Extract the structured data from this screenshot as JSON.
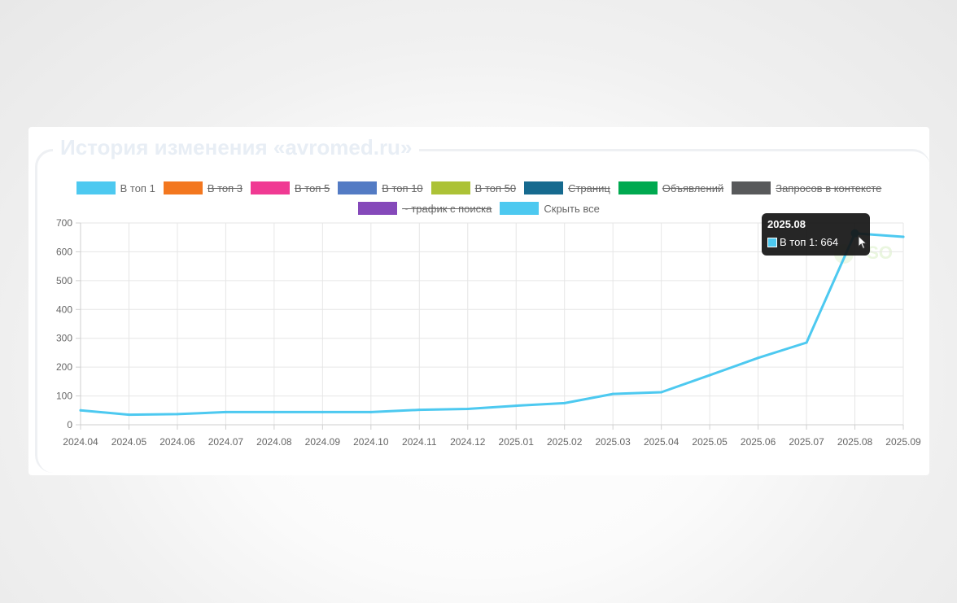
{
  "panel": {
    "title": "История изменения «avromed.ru»",
    "watermark": "SO"
  },
  "legend": {
    "row1": [
      {
        "label": "В топ 1",
        "color": "#4dc9f0",
        "hidden": false
      },
      {
        "label": "В топ 3",
        "color": "#f3771f",
        "hidden": true
      },
      {
        "label": "В топ 5",
        "color": "#f03a93",
        "hidden": true
      },
      {
        "label": "В топ 10",
        "color": "#537bc4",
        "hidden": true
      },
      {
        "label": "В топ 50",
        "color": "#acc236",
        "hidden": true
      },
      {
        "label": "Страниц",
        "color": "#166a8f",
        "hidden": true
      },
      {
        "label": "Объявлений",
        "color": "#00a950",
        "hidden": true
      },
      {
        "label": "Запросов в контексте",
        "color": "#58595b",
        "hidden": true
      }
    ],
    "row2": [
      {
        "label": "~ трафик с поиска",
        "color": "#8549ba",
        "hidden": true
      },
      {
        "label": "Скрыть все",
        "color": "#4dc9f0",
        "hidden": false
      }
    ]
  },
  "tooltip": {
    "title": "2025.08",
    "label": "В топ 1: 664",
    "color": "#4dc9f0"
  },
  "chart_data": {
    "type": "line",
    "x": [
      "2024.04",
      "2024.05",
      "2024.06",
      "2024.07",
      "2024.08",
      "2024.09",
      "2024.10",
      "2024.11",
      "2024.12",
      "2025.01",
      "2025.02",
      "2025.03",
      "2025.04",
      "2025.05",
      "2025.06",
      "2025.07",
      "2025.08",
      "2025.09"
    ],
    "series": [
      {
        "name": "В топ 1",
        "color": "#4dc9f0",
        "values": [
          50,
          35,
          37,
          44,
          44,
          44,
          44,
          52,
          55,
          66,
          75,
          107,
          113,
          172,
          232,
          285,
          664,
          652
        ]
      }
    ],
    "y_ticks": [
      "0",
      "100",
      "200",
      "300",
      "400",
      "500",
      "600",
      "700"
    ],
    "ylim": [
      0,
      700
    ],
    "grid": true,
    "legend_position": "top",
    "highlighted": {
      "x": "2025.08",
      "series": "В топ 1",
      "value": 664
    }
  }
}
